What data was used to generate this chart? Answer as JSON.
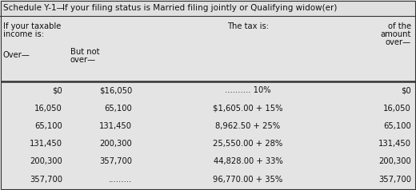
{
  "title": "Schedule Y-1—    If your filing status is Married filing jointly or Qualifying widow(er)",
  "title_left": "Schedule Y-1—",
  "title_right": "If your filing status is Married filing jointly or Qualifying widow(er)",
  "header_col1_line1": "If your taxable",
  "header_col1_line2": "income is:",
  "header_col3": "The tax is:",
  "header_col4": "of the\namount\nover—",
  "sub_col1": "Over—",
  "sub_col2": "But not\nover—",
  "rows": [
    [
      "$0",
      "$16,050",
      ".......... 10%",
      "$0"
    ],
    [
      "16,050",
      "65,100",
      "$1,605.00 + 15%",
      "16,050"
    ],
    [
      "65,100",
      "131,450",
      "8,962.50 + 25%",
      "65,100"
    ],
    [
      "131,450",
      "200,300",
      "25,550.00 + 28%",
      "131,450"
    ],
    [
      "200,300",
      "357,700",
      "44,828.00 + 33%",
      "200,300"
    ],
    [
      "357,700",
      ".........",
      "96,770.00 + 35%",
      "357,700"
    ]
  ],
  "bg_color": "#d8d8d8",
  "title_bg": "#e8e8e8",
  "table_bg": "#e0e0e0",
  "line_color": "#333333",
  "text_color": "#111111",
  "font_size": 7.2,
  "title_font_size": 7.5,
  "fig_width": 5.2,
  "fig_height": 2.38,
  "dpi": 100
}
